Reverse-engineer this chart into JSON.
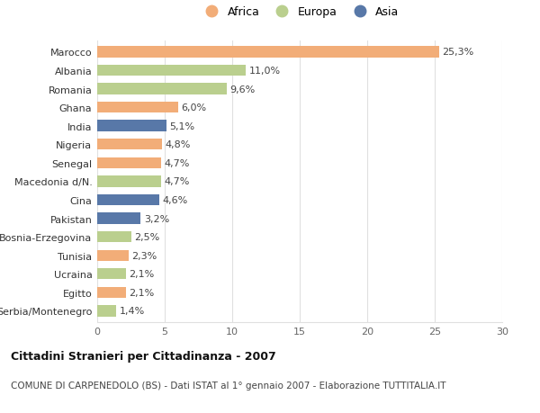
{
  "categories": [
    "Marocco",
    "Albania",
    "Romania",
    "Ghana",
    "India",
    "Nigeria",
    "Senegal",
    "Macedonia d/N.",
    "Cina",
    "Pakistan",
    "Bosnia-Erzegovina",
    "Tunisia",
    "Ucraina",
    "Egitto",
    "Serbia/Montenegro"
  ],
  "values": [
    25.3,
    11.0,
    9.6,
    6.0,
    5.1,
    4.8,
    4.7,
    4.7,
    4.6,
    3.2,
    2.5,
    2.3,
    2.1,
    2.1,
    1.4
  ],
  "labels": [
    "25,3%",
    "11,0%",
    "9,6%",
    "6,0%",
    "5,1%",
    "4,8%",
    "4,7%",
    "4,7%",
    "4,6%",
    "3,2%",
    "2,5%",
    "2,3%",
    "2,1%",
    "2,1%",
    "1,4%"
  ],
  "continents": [
    "Africa",
    "Europa",
    "Europa",
    "Africa",
    "Asia",
    "Africa",
    "Africa",
    "Europa",
    "Asia",
    "Asia",
    "Europa",
    "Africa",
    "Europa",
    "Africa",
    "Europa"
  ],
  "colors": {
    "Africa": "#F2AD78",
    "Europa": "#BACF8E",
    "Asia": "#5878A8"
  },
  "legend_order": [
    "Africa",
    "Europa",
    "Asia"
  ],
  "title": "Cittadini Stranieri per Cittadinanza - 2007",
  "subtitle": "COMUNE DI CARPENEDOLO (BS) - Dati ISTAT al 1° gennaio 2007 - Elaborazione TUTTITALIA.IT",
  "xlim": [
    0,
    30
  ],
  "xticks": [
    0,
    5,
    10,
    15,
    20,
    25,
    30
  ],
  "background_color": "#ffffff",
  "grid_color": "#e0e0e0",
  "bar_height": 0.6,
  "label_fontsize": 8,
  "tick_fontsize": 8,
  "legend_fontsize": 9,
  "title_fontsize": 9,
  "subtitle_fontsize": 7.5
}
